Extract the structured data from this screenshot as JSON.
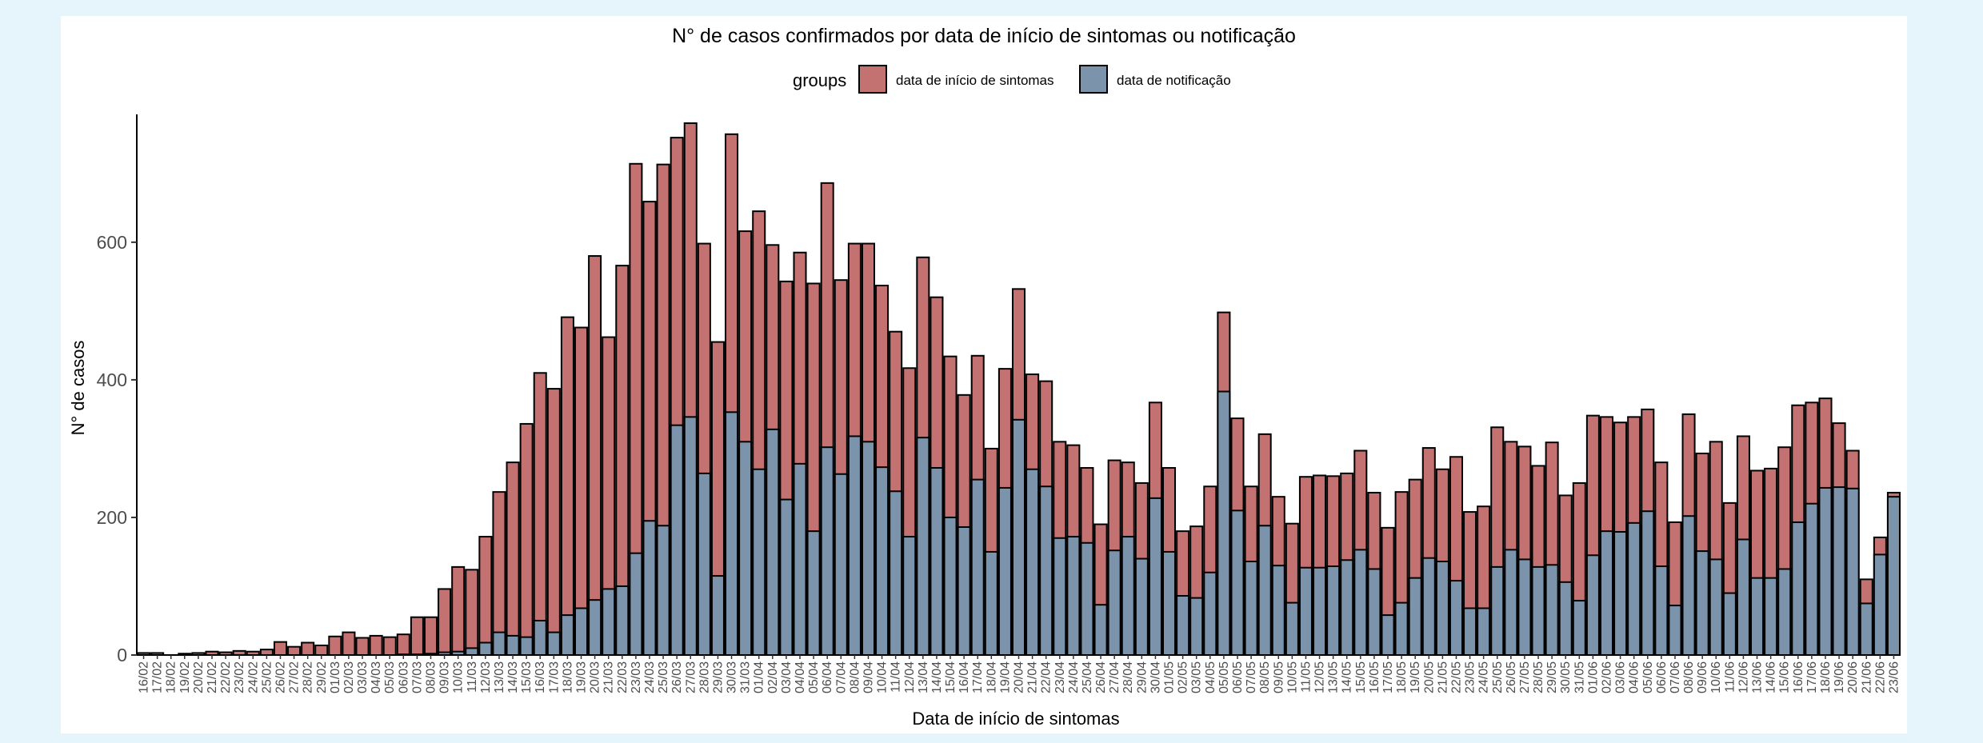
{
  "chart_data": {
    "type": "bar",
    "stacking": "overlay",
    "title": "N° de casos confirmados por data de início de sintomas ou notificação",
    "xlabel": "Data de início de sintomas",
    "ylabel": "N° de casos",
    "ylim": [
      0,
      780
    ],
    "yticks": [
      0,
      200,
      400,
      600
    ],
    "grid": false,
    "legend": {
      "title": "groups",
      "position": "top",
      "entries": [
        "data de início de sintomas",
        "data de notificação"
      ]
    },
    "categories": [
      "16/02",
      "17/02",
      "18/02",
      "19/02",
      "20/02",
      "21/02",
      "22/02",
      "23/02",
      "24/02",
      "25/02",
      "26/02",
      "27/02",
      "28/02",
      "29/02",
      "01/03",
      "02/03",
      "03/03",
      "04/03",
      "05/03",
      "06/03",
      "07/03",
      "08/03",
      "09/03",
      "10/03",
      "11/03",
      "12/03",
      "13/03",
      "14/03",
      "15/03",
      "16/03",
      "17/03",
      "18/03",
      "19/03",
      "20/03",
      "21/03",
      "22/03",
      "23/03",
      "24/03",
      "25/03",
      "26/03",
      "27/03",
      "28/03",
      "29/03",
      "30/03",
      "31/03",
      "01/04",
      "02/04",
      "03/04",
      "04/04",
      "05/04",
      "06/04",
      "07/04",
      "08/04",
      "09/04",
      "10/04",
      "11/04",
      "12/04",
      "13/04",
      "14/04",
      "15/04",
      "16/04",
      "17/04",
      "18/04",
      "19/04",
      "20/04",
      "21/04",
      "22/04",
      "23/04",
      "24/04",
      "25/04",
      "26/04",
      "27/04",
      "28/04",
      "29/04",
      "30/04",
      "01/05",
      "02/05",
      "03/05",
      "04/05",
      "05/05",
      "06/05",
      "07/05",
      "08/05",
      "09/05",
      "10/05",
      "11/05",
      "12/05",
      "13/05",
      "14/05",
      "15/05",
      "16/05",
      "17/05",
      "18/05",
      "19/05",
      "20/05",
      "21/05",
      "22/05",
      "23/05",
      "24/05",
      "25/05",
      "26/05",
      "27/05",
      "28/05",
      "29/05",
      "30/05",
      "31/05",
      "01/06",
      "02/06",
      "03/06",
      "04/06",
      "05/06",
      "06/06",
      "07/06",
      "08/06",
      "09/06",
      "10/06",
      "11/06",
      "12/06",
      "13/06",
      "14/06",
      "15/06",
      "16/06",
      "17/06",
      "18/06",
      "19/06",
      "20/06",
      "21/06",
      "22/06",
      "23/06"
    ],
    "series": [
      {
        "name": "data de início de sintomas",
        "color": "#c47172",
        "values": [
          3,
          3,
          0,
          2,
          3,
          5,
          4,
          6,
          5,
          8,
          19,
          12,
          18,
          14,
          27,
          33,
          25,
          28,
          26,
          30,
          55,
          55,
          96,
          128,
          124,
          172,
          237,
          280,
          336,
          410,
          387,
          491,
          476,
          580,
          462,
          566,
          714,
          659,
          713,
          752,
          773,
          598,
          455,
          757,
          616,
          645,
          596,
          543,
          585,
          540,
          686,
          545,
          598,
          598,
          537,
          470,
          417,
          578,
          520,
          434,
          378,
          435,
          300,
          416,
          532,
          408,
          398,
          310,
          305,
          272,
          190,
          283,
          280,
          250,
          367,
          272,
          180,
          187,
          245,
          498,
          344,
          245,
          321,
          230,
          191,
          259,
          261,
          260,
          264,
          297,
          236,
          185,
          237,
          255,
          301,
          270,
          288,
          208,
          216,
          331,
          310,
          303,
          275,
          309,
          232,
          250,
          348,
          346,
          338,
          346,
          357,
          280,
          193,
          350,
          293,
          310,
          221,
          318,
          268,
          271,
          302,
          363,
          367,
          373,
          337,
          297,
          110,
          171,
          236
        ]
      },
      {
        "name": "data de notificação",
        "color": "#7b93ab",
        "values": [
          0,
          0,
          0,
          0,
          0,
          0,
          0,
          0,
          0,
          0,
          0,
          0,
          0,
          0,
          0,
          0,
          0,
          0,
          0,
          1,
          1,
          2,
          4,
          5,
          10,
          18,
          33,
          28,
          26,
          50,
          33,
          58,
          68,
          80,
          96,
          100,
          148,
          195,
          188,
          334,
          346,
          264,
          115,
          353,
          310,
          270,
          328,
          226,
          278,
          180,
          302,
          263,
          318,
          310,
          273,
          238,
          172,
          316,
          272,
          200,
          186,
          255,
          150,
          243,
          342,
          270,
          245,
          170,
          172,
          163,
          73,
          152,
          172,
          140,
          228,
          150,
          86,
          83,
          120,
          383,
          210,
          136,
          188,
          130,
          76,
          127,
          127,
          129,
          138,
          153,
          125,
          58,
          76,
          112,
          141,
          136,
          108,
          68,
          68,
          128,
          153,
          139,
          128,
          131,
          106,
          79,
          145,
          180,
          179,
          192,
          209,
          129,
          72,
          202,
          151,
          139,
          90,
          168,
          112,
          112,
          125,
          193,
          220,
          243,
          244,
          242,
          75,
          146,
          230
        ]
      }
    ]
  }
}
